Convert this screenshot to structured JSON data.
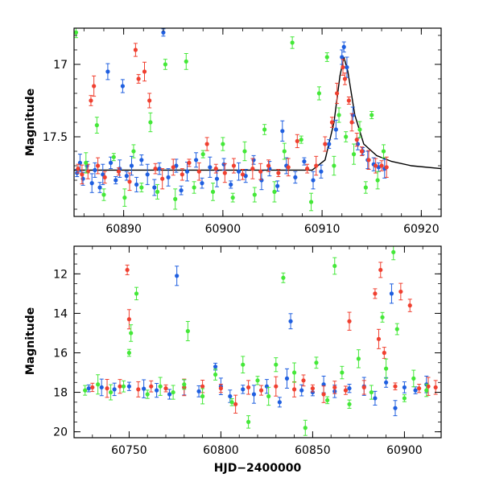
{
  "chart_data": [
    {
      "type": "scatter",
      "title": "",
      "xlabel": "",
      "ylabel": "Magnitude",
      "xlim": [
        60885,
        60922
      ],
      "ylim": [
        18.05,
        16.75
      ],
      "y_inverted": true,
      "x_ticks": [
        60890,
        60900,
        60910,
        60920
      ],
      "y_ticks": [
        17,
        17.5
      ],
      "grid": false,
      "legend": "none",
      "series": [
        {
          "color": "#1f5fe0",
          "points": [
            [
              60885.3,
              17.75
            ],
            [
              60885.6,
              17.68
            ],
            [
              60885.9,
              17.79
            ],
            [
              60886.3,
              17.7
            ],
            [
              60886.8,
              17.82
            ],
            [
              60887.1,
              17.73
            ],
            [
              60887.6,
              17.85
            ],
            [
              60887.9,
              17.76
            ],
            [
              60888.4,
              17.05
            ],
            [
              60888.7,
              17.68
            ],
            [
              60889.2,
              17.8
            ],
            [
              60889.6,
              17.72
            ],
            [
              60889.9,
              17.15
            ],
            [
              60890.3,
              17.77
            ],
            [
              60890.8,
              17.7
            ],
            [
              60891.3,
              17.83
            ],
            [
              60891.8,
              17.66
            ],
            [
              60892.4,
              17.76
            ],
            [
              60893.1,
              17.85
            ],
            [
              60893.6,
              17.72
            ],
            [
              60894.0,
              16.78
            ],
            [
              60894.5,
              17.78
            ],
            [
              60895.3,
              17.7
            ],
            [
              60895.8,
              17.87
            ],
            [
              60896.4,
              17.74
            ],
            [
              60897.3,
              17.66
            ],
            [
              60897.9,
              17.82
            ],
            [
              60898.7,
              17.71
            ],
            [
              60899.4,
              17.79
            ],
            [
              60900.1,
              17.69
            ],
            [
              60900.8,
              17.83
            ],
            [
              60901.6,
              17.74
            ],
            [
              60902.3,
              17.77
            ],
            [
              60903.1,
              17.66
            ],
            [
              60903.9,
              17.8
            ],
            [
              60904.7,
              17.72
            ],
            [
              60905.5,
              17.84
            ],
            [
              60906.0,
              17.46
            ],
            [
              60906.4,
              17.7
            ],
            [
              60907.3,
              17.78
            ],
            [
              60908.2,
              17.67
            ],
            [
              60909.1,
              17.8
            ],
            [
              60909.9,
              17.74
            ],
            [
              60910.7,
              17.55
            ],
            [
              60911.4,
              17.45
            ],
            [
              60912.0,
              16.95
            ],
            [
              60912.2,
              16.88
            ],
            [
              60912.5,
              17.02
            ],
            [
              60913.1,
              17.35
            ],
            [
              60913.6,
              17.55
            ],
            [
              60914.1,
              17.6
            ],
            [
              60914.6,
              17.66
            ],
            [
              60915.2,
              17.69
            ],
            [
              60915.7,
              17.71
            ],
            [
              60916.3,
              17.72
            ]
          ]
        },
        {
          "color": "#f04030",
          "points": [
            [
              60885.4,
              17.72
            ],
            [
              60885.8,
              17.76
            ],
            [
              60886.4,
              17.74
            ],
            [
              60886.7,
              17.25
            ],
            [
              60887.0,
              17.15
            ],
            [
              60887.4,
              17.7
            ],
            [
              60888.1,
              17.78
            ],
            [
              60889.5,
              17.74
            ],
            [
              60890.6,
              17.81
            ],
            [
              60891.2,
              16.9
            ],
            [
              60891.5,
              17.1
            ],
            [
              60892.1,
              17.05
            ],
            [
              60892.6,
              17.25
            ],
            [
              60893.2,
              17.72
            ],
            [
              60893.9,
              17.79
            ],
            [
              60895.0,
              17.71
            ],
            [
              60895.9,
              17.76
            ],
            [
              60896.6,
              17.68
            ],
            [
              60897.6,
              17.74
            ],
            [
              60898.4,
              17.55
            ],
            [
              60899.3,
              17.72
            ],
            [
              60900.2,
              17.75
            ],
            [
              60901.1,
              17.7
            ],
            [
              60902.0,
              17.76
            ],
            [
              60903.0,
              17.72
            ],
            [
              60903.8,
              17.74
            ],
            [
              60904.6,
              17.7
            ],
            [
              60905.6,
              17.75
            ],
            [
              60906.6,
              17.71
            ],
            [
              60907.5,
              17.53
            ],
            [
              60908.5,
              17.72
            ],
            [
              60909.4,
              17.7
            ],
            [
              60910.3,
              17.55
            ],
            [
              60911.0,
              17.4
            ],
            [
              60911.5,
              17.2
            ],
            [
              60912.1,
              17.02
            ],
            [
              60912.3,
              17.1
            ],
            [
              60912.7,
              17.25
            ],
            [
              60913.0,
              17.4
            ],
            [
              60913.5,
              17.52
            ],
            [
              60914.0,
              17.6
            ],
            [
              60914.7,
              17.66
            ],
            [
              60915.4,
              17.7
            ],
            [
              60916.0,
              17.7
            ],
            [
              60916.5,
              17.71
            ]
          ]
        },
        {
          "color": "#44e838",
          "points": [
            [
              60885.2,
              16.78
            ],
            [
              60886.2,
              17.68
            ],
            [
              60887.3,
              17.42
            ],
            [
              60888.0,
              17.9
            ],
            [
              60889.0,
              17.64
            ],
            [
              60890.1,
              17.92
            ],
            [
              60891.0,
              17.6
            ],
            [
              60891.8,
              17.85
            ],
            [
              60892.7,
              17.4
            ],
            [
              60893.4,
              17.88
            ],
            [
              60894.2,
              17.0
            ],
            [
              60895.2,
              17.93
            ],
            [
              60896.3,
              16.98
            ],
            [
              60897.1,
              17.85
            ],
            [
              60898.0,
              17.62
            ],
            [
              60899.0,
              17.88
            ],
            [
              60900.0,
              17.55
            ],
            [
              60901.0,
              17.92
            ],
            [
              60902.2,
              17.6
            ],
            [
              60903.2,
              17.9
            ],
            [
              60904.2,
              17.45
            ],
            [
              60905.2,
              17.88
            ],
            [
              60906.2,
              17.6
            ],
            [
              60907.0,
              16.85
            ],
            [
              60907.9,
              17.52
            ],
            [
              60908.9,
              17.95
            ],
            [
              60909.7,
              17.2
            ],
            [
              60910.5,
              16.95
            ],
            [
              60911.2,
              17.7
            ],
            [
              60911.7,
              17.35
            ],
            [
              60912.4,
              17.5
            ],
            [
              60913.2,
              17.62
            ],
            [
              60913.8,
              17.45
            ],
            [
              60914.4,
              17.85
            ],
            [
              60915.0,
              17.35
            ],
            [
              60915.6,
              17.8
            ],
            [
              60916.2,
              17.6
            ]
          ]
        }
      ],
      "model_curve": {
        "color": "#000000",
        "points": [
          [
            60885,
            17.73
          ],
          [
            60900,
            17.73
          ],
          [
            60909,
            17.73
          ],
          [
            60910.3,
            17.66
          ],
          [
            60911.2,
            17.4
          ],
          [
            60911.8,
            17.08
          ],
          [
            60912.2,
            16.95
          ],
          [
            60912.6,
            17.05
          ],
          [
            60913.3,
            17.35
          ],
          [
            60914.2,
            17.55
          ],
          [
            60915.5,
            17.63
          ],
          [
            60917,
            17.67
          ],
          [
            60919,
            17.7
          ],
          [
            60922,
            17.72
          ]
        ]
      }
    },
    {
      "type": "scatter",
      "title": "",
      "xlabel": "HJD−2400000",
      "ylabel": "Magnitude",
      "xlim": [
        60720,
        60920
      ],
      "ylim": [
        20.3,
        10.6
      ],
      "y_inverted": true,
      "x_ticks": [
        60750,
        60800,
        60850,
        60900
      ],
      "y_ticks": [
        12,
        14,
        16,
        18,
        20
      ],
      "grid": false,
      "legend": "none",
      "series": [
        {
          "color": "#1f5fe0",
          "points": [
            [
              60728,
              17.8
            ],
            [
              60735,
              17.75
            ],
            [
              60742,
              17.85
            ],
            [
              60750,
              17.7
            ],
            [
              60758,
              17.82
            ],
            [
              60765,
              17.9
            ],
            [
              60772,
              18.1
            ],
            [
              60776,
              12.1
            ],
            [
              60780,
              17.75
            ],
            [
              60788,
              17.95
            ],
            [
              60797,
              16.7
            ],
            [
              60800,
              17.7
            ],
            [
              60805,
              18.2
            ],
            [
              60812,
              17.85
            ],
            [
              60818,
              18.1
            ],
            [
              60825,
              17.7
            ],
            [
              60832,
              18.5
            ],
            [
              60836,
              17.3
            ],
            [
              60838,
              14.4
            ],
            [
              60844,
              17.9
            ],
            [
              60850,
              18.0
            ],
            [
              60856,
              17.6
            ],
            [
              60862,
              17.95
            ],
            [
              60870,
              17.8
            ],
            [
              60878,
              17.7
            ],
            [
              60884,
              18.3
            ],
            [
              60890,
              17.5
            ],
            [
              60893,
              13.0
            ],
            [
              60895,
              18.8
            ],
            [
              60900,
              17.75
            ],
            [
              60906,
              17.9
            ],
            [
              60912,
              17.6
            ]
          ]
        },
        {
          "color": "#f04030",
          "points": [
            [
              60730,
              17.75
            ],
            [
              60738,
              17.8
            ],
            [
              60745,
              17.7
            ],
            [
              60749,
              11.8
            ],
            [
              60750,
              14.3
            ],
            [
              60755,
              17.85
            ],
            [
              60762,
              17.7
            ],
            [
              60770,
              17.8
            ],
            [
              60780,
              17.75
            ],
            [
              60790,
              17.7
            ],
            [
              60800,
              17.8
            ],
            [
              60808,
              18.6
            ],
            [
              60815,
              17.75
            ],
            [
              60822,
              17.9
            ],
            [
              60830,
              17.7
            ],
            [
              60840,
              17.85
            ],
            [
              60845,
              17.4
            ],
            [
              60850,
              17.8
            ],
            [
              60856,
              18.1
            ],
            [
              60862,
              17.75
            ],
            [
              60868,
              17.9
            ],
            [
              60870,
              14.4
            ],
            [
              60878,
              17.75
            ],
            [
              60884,
              13.0
            ],
            [
              60886,
              15.3
            ],
            [
              60887,
              11.8
            ],
            [
              60889,
              16.0
            ],
            [
              60895,
              17.7
            ],
            [
              60898,
              12.9
            ],
            [
              60903,
              13.6
            ],
            [
              60908,
              17.8
            ],
            [
              60913,
              17.7
            ],
            [
              60917,
              17.75
            ]
          ]
        },
        {
          "color": "#44e838",
          "points": [
            [
              60726,
              17.9
            ],
            [
              60733,
              17.6
            ],
            [
              60740,
              18.0
            ],
            [
              60747,
              17.7
            ],
            [
              60750,
              16.0
            ],
            [
              60751,
              15.0
            ],
            [
              60754,
              13.0
            ],
            [
              60760,
              18.1
            ],
            [
              60767,
              17.7
            ],
            [
              60774,
              18.0
            ],
            [
              60780,
              17.6
            ],
            [
              60782,
              14.9
            ],
            [
              60790,
              18.2
            ],
            [
              60797,
              17.1
            ],
            [
              60806,
              18.5
            ],
            [
              60812,
              16.6
            ],
            [
              60815,
              19.5
            ],
            [
              60820,
              17.4
            ],
            [
              60826,
              18.2
            ],
            [
              60830,
              16.6
            ],
            [
              60834,
              12.2
            ],
            [
              60840,
              17.0
            ],
            [
              60846,
              19.8
            ],
            [
              60852,
              16.5
            ],
            [
              60858,
              18.4
            ],
            [
              60862,
              11.6
            ],
            [
              60866,
              17.0
            ],
            [
              60870,
              18.6
            ],
            [
              60875,
              16.3
            ],
            [
              60882,
              18.0
            ],
            [
              60888,
              14.2
            ],
            [
              60890,
              16.8
            ],
            [
              60894,
              10.9
            ],
            [
              60896,
              14.8
            ],
            [
              60900,
              18.3
            ],
            [
              60905,
              17.3
            ],
            [
              60912,
              17.9
            ]
          ]
        }
      ]
    }
  ]
}
